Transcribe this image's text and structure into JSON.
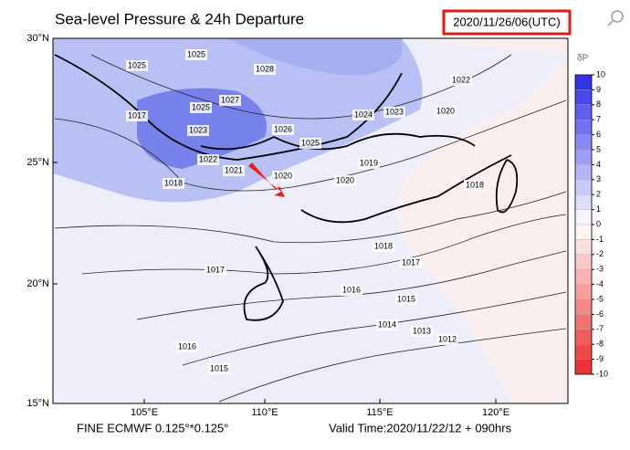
{
  "header": {
    "title": "Sea-level Pressure & 24h Departure",
    "timestamp": "2020/11/26/06(UTC)"
  },
  "map": {
    "lat_labels": [
      "30°N",
      "25°N",
      "20°N",
      "15°N"
    ],
    "lon_labels": [
      "105°E",
      "110°E",
      "115°E",
      "120°E"
    ],
    "isobar_labels": [
      "1025",
      "1025",
      "1028",
      "1027",
      "1025",
      "1026",
      "1025",
      "1024",
      "1023",
      "1022",
      "1020",
      "1017",
      "1023",
      "1022",
      "1021",
      "1020",
      "1018",
      "1018",
      "1018",
      "1017",
      "1017",
      "1016",
      "1015",
      "1014",
      "1013",
      "1012",
      "1015",
      "1016",
      "1019",
      "1020"
    ]
  },
  "colorbar": {
    "title": "δP",
    "ticks": [
      10,
      9,
      8,
      7,
      6,
      5,
      4,
      3,
      2,
      1,
      0,
      -1,
      -2,
      -3,
      -4,
      -5,
      -6,
      -7,
      -8,
      -9,
      -10
    ]
  },
  "footer": {
    "left": "FINE ECMWF 0.125°*0.125°",
    "right": "Valid Time:2020/11/22/12 + 090hrs"
  }
}
